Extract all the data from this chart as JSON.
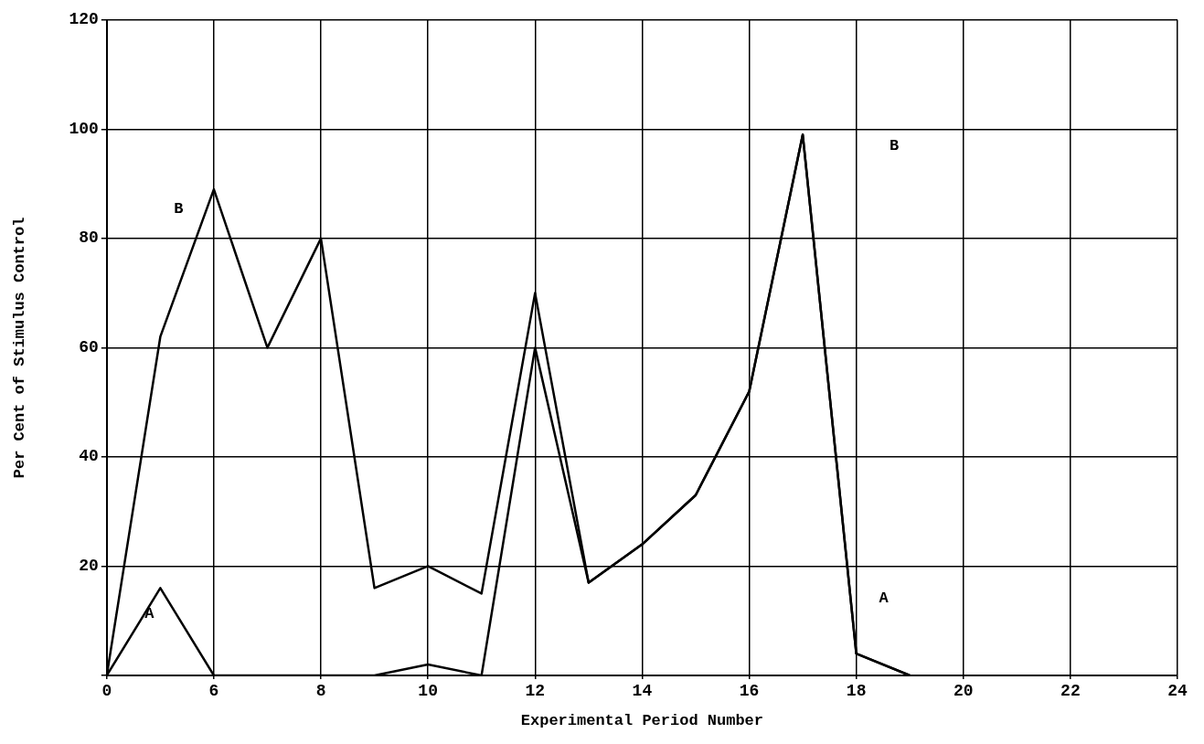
{
  "chart_data": {
    "type": "line",
    "xlabel": "Experimental Period Number",
    "ylabel": "Per Cent of Stimulus Control",
    "categories": [
      "0",
      null,
      "6",
      null,
      "8",
      null,
      "10",
      null,
      "12",
      null,
      "14",
      null,
      "16",
      null,
      "18",
      null,
      "20",
      null,
      "22",
      null,
      "24"
    ],
    "series": [
      {
        "name": "B",
        "color": "#000000",
        "values": [
          0,
          62,
          89,
          60,
          80,
          16,
          20,
          15,
          70,
          17,
          24,
          33,
          52,
          99,
          4,
          0,
          null,
          null,
          null,
          null,
          null
        ]
      },
      {
        "name": "A",
        "color": "#000000",
        "values": [
          0,
          16,
          0,
          0,
          0,
          0,
          2,
          0,
          60,
          17,
          24,
          33,
          52,
          99,
          4,
          0,
          null,
          null,
          null,
          null,
          null
        ]
      }
    ],
    "ylim": [
      0,
      120
    ],
    "yticks": [
      {
        "value": 0,
        "label": null
      },
      20,
      40,
      60,
      80,
      100,
      120
    ],
    "grid": true,
    "marker": "none",
    "line_style": "solid",
    "legend": false
  }
}
